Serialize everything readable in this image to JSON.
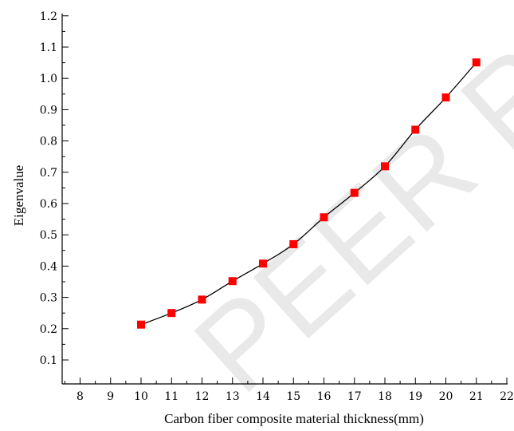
{
  "watermark": "PEER R",
  "chart_data": {
    "type": "line",
    "xlabel": "Carbon fiber composite material thickness(mm)",
    "ylabel": "Eigenvalue",
    "xlim": [
      7.5,
      22
    ],
    "ylim": [
      0.1,
      1.2
    ],
    "x_ticks": [
      8,
      9,
      10,
      11,
      12,
      13,
      14,
      15,
      16,
      17,
      18,
      19,
      20,
      21,
      22
    ],
    "y_ticks": [
      0.1,
      0.2,
      0.3,
      0.4,
      0.5,
      0.6,
      0.7,
      0.8,
      0.9,
      1.0,
      1.1,
      1.2
    ],
    "y_tick_labels": [
      "0.1",
      "0.2",
      "0.3",
      "0.4",
      "0.5",
      "0.6",
      "0.7",
      "0.8",
      "0.9",
      "1.0",
      "1.1",
      "1.2"
    ],
    "grid": false,
    "series": [
      {
        "color": "#ff0000",
        "marker": "square",
        "line_color": "#000000",
        "x": [
          10,
          11,
          12,
          13,
          14,
          15,
          16,
          17,
          18,
          19,
          20,
          21
        ],
        "y": [
          0.213,
          0.25,
          0.293,
          0.352,
          0.408,
          0.47,
          0.556,
          0.634,
          0.719,
          0.836,
          0.939,
          1.051
        ]
      }
    ]
  }
}
